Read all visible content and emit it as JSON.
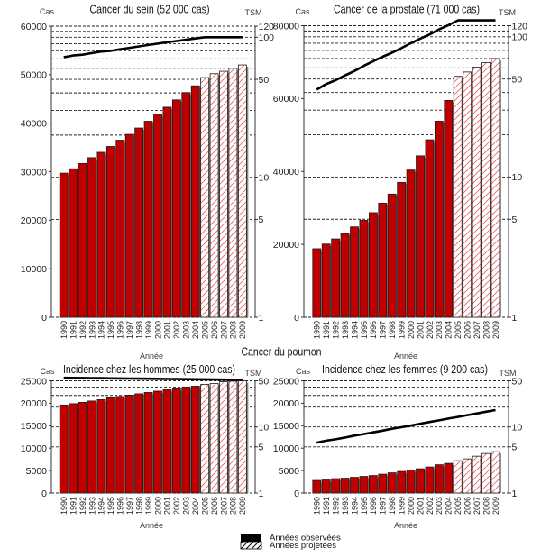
{
  "figure": {
    "group_title": "Cancer du poumon",
    "legend": [
      {
        "label": "Années observées",
        "style": "solid"
      },
      {
        "label": "Années projetées",
        "style": "hatched"
      }
    ]
  },
  "colors": {
    "observed_bar": "#c00000",
    "projected_fill": "#ffffff",
    "projected_hatch": "#f25c5c",
    "bar_outline": "#1a1a1a",
    "bar_shadow": "#8a8a8a",
    "tsm_line": "#000000",
    "legend_observed": "#000000",
    "legend_hatch": "#000000"
  },
  "chart_data": [
    {
      "type": "bar",
      "title": "Cancer du sein (52 000 cas)",
      "xlabel": "Année",
      "ylabel": "Cas",
      "y2label": "TSM",
      "categories": [
        "1990",
        "1991",
        "1992",
        "1993",
        "1994",
        "1995",
        "1996",
        "1997",
        "1998",
        "1999",
        "2000",
        "2001",
        "2002",
        "2003",
        "2004",
        "2005",
        "2006",
        "2007",
        "2008",
        "2009"
      ],
      "projected_from": "2005",
      "series": [
        {
          "name": "Cas",
          "type": "bar",
          "axis": "left",
          "values": [
            29700,
            30600,
            31700,
            32900,
            34000,
            35200,
            36500,
            37700,
            39000,
            40400,
            41800,
            43300,
            44800,
            46300,
            47700,
            49400,
            50200,
            50700,
            51300,
            52000
          ]
        },
        {
          "name": "TSM",
          "type": "line",
          "axis": "right",
          "values": [
            72,
            74,
            75,
            77,
            79,
            80,
            82,
            84,
            86,
            88,
            90,
            92,
            94,
            96,
            98,
            100,
            100,
            100,
            100,
            100
          ]
        }
      ],
      "ylim": [
        0,
        60000
      ],
      "yticks": [
        0,
        10000,
        20000,
        30000,
        40000,
        50000,
        60000
      ],
      "y2lim": [
        1,
        120
      ],
      "y2scale": "log",
      "y2ticks": [
        1,
        5,
        10,
        50,
        100,
        120
      ],
      "y2grid": [
        1,
        5,
        10,
        20,
        30,
        40,
        50,
        60,
        70,
        80,
        90,
        100,
        110,
        120
      ],
      "grid": true
    },
    {
      "type": "bar",
      "title": "Cancer de la prostate (71 000 cas)",
      "xlabel": "Année",
      "ylabel": "Cas",
      "y2label": "TSM",
      "categories": [
        "1990",
        "1991",
        "1992",
        "1993",
        "1994",
        "1995",
        "1996",
        "1997",
        "1998",
        "1999",
        "2000",
        "2001",
        "2002",
        "2003",
        "2004",
        "2005",
        "2006",
        "2007",
        "2008",
        "2009"
      ],
      "projected_from": "2005",
      "series": [
        {
          "name": "Cas",
          "type": "bar",
          "axis": "left",
          "values": [
            18800,
            20100,
            21500,
            23000,
            24800,
            26600,
            28700,
            31300,
            33800,
            37000,
            40400,
            44300,
            48700,
            53800,
            59500,
            66100,
            67300,
            68600,
            69900,
            71000
          ]
        },
        {
          "name": "TSM",
          "type": "line",
          "axis": "right",
          "values": [
            42,
            46,
            49,
            53,
            57,
            62,
            67,
            72,
            77,
            83,
            90,
            97,
            104,
            113,
            121,
            131,
            131,
            131,
            131,
            131
          ]
        }
      ],
      "ylim": [
        0,
        80000
      ],
      "yticks": [
        0,
        20000,
        40000,
        60000,
        80000
      ],
      "y2lim": [
        1,
        120
      ],
      "y2scale": "log",
      "y2ticks": [
        1,
        5,
        10,
        50,
        100,
        120
      ],
      "y2grid": [
        1,
        5,
        10,
        20,
        30,
        40,
        50,
        60,
        70,
        80,
        90,
        100,
        110,
        120
      ],
      "grid": true
    },
    {
      "type": "bar",
      "group": "Cancer du poumon",
      "title": "Incidence chez les hommes (25 000 cas)",
      "xlabel": "Année",
      "ylabel": "Cas",
      "y2label": "TSM",
      "categories": [
        "1990",
        "1991",
        "1992",
        "1993",
        "1994",
        "1995",
        "1996",
        "1997",
        "1998",
        "1999",
        "2000",
        "2001",
        "2002",
        "2003",
        "2004",
        "2005",
        "2006",
        "2007",
        "2008",
        "2009"
      ],
      "projected_from": "2005",
      "series": [
        {
          "name": "Cas",
          "type": "bar",
          "axis": "left",
          "values": [
            19600,
            19900,
            20200,
            20500,
            20800,
            21200,
            21500,
            21800,
            22100,
            22400,
            22700,
            23000,
            23200,
            23600,
            23800,
            24200,
            24400,
            24800,
            24900,
            25000
          ]
        },
        {
          "name": "TSM",
          "type": "line",
          "axis": "right",
          "values": [
            55.5,
            55.3,
            55.1,
            54.9,
            54.7,
            54.5,
            54.3,
            54.1,
            53.9,
            53.7,
            53.5,
            53.3,
            53.1,
            52.9,
            52.7,
            52.5,
            52.3,
            52.1,
            51.9,
            51.7
          ]
        }
      ],
      "ylim": [
        0,
        25000
      ],
      "yticks": [
        0,
        5000,
        10000,
        15000,
        20000,
        25000
      ],
      "y2lim": [
        1,
        50
      ],
      "y2scale": "log",
      "y2ticks": [
        1,
        5,
        10,
        50
      ],
      "y2grid": [
        1,
        5,
        10,
        20,
        30,
        40,
        50
      ],
      "grid": true
    },
    {
      "type": "bar",
      "group": "Cancer du poumon",
      "title": "Incidence chez les femmes (9 200 cas)",
      "xlabel": "Année",
      "ylabel": "Cas",
      "y2label": "TSM",
      "categories": [
        "1990",
        "1991",
        "1992",
        "1993",
        "1994",
        "1995",
        "1996",
        "1997",
        "1998",
        "1999",
        "2000",
        "2001",
        "2002",
        "2003",
        "2004",
        "2005",
        "2006",
        "2007",
        "2008",
        "2009"
      ],
      "projected_from": "2005",
      "series": [
        {
          "name": "Cas",
          "type": "bar",
          "axis": "left",
          "values": [
            2800,
            2900,
            3200,
            3300,
            3500,
            3700,
            3900,
            4200,
            4500,
            4800,
            5100,
            5400,
            5800,
            6300,
            6600,
            7200,
            7600,
            8200,
            8800,
            9200
          ]
        },
        {
          "name": "TSM",
          "type": "line",
          "axis": "right",
          "values": [
            5.8,
            6.2,
            6.5,
            6.9,
            7.4,
            7.8,
            8.3,
            8.8,
            9.4,
            9.9,
            10.5,
            11.2,
            11.9,
            12.6,
            13.4,
            14.2,
            15.1,
            16.0,
            17.0,
            18.0
          ]
        }
      ],
      "ylim": [
        0,
        25000
      ],
      "yticks": [
        0,
        5000,
        10000,
        15000,
        20000,
        25000
      ],
      "y2lim": [
        1,
        50
      ],
      "y2scale": "log",
      "y2ticks": [
        1,
        5,
        10,
        50
      ],
      "y2grid": [
        1,
        5,
        10,
        20,
        30,
        40,
        50
      ],
      "grid": true
    }
  ]
}
